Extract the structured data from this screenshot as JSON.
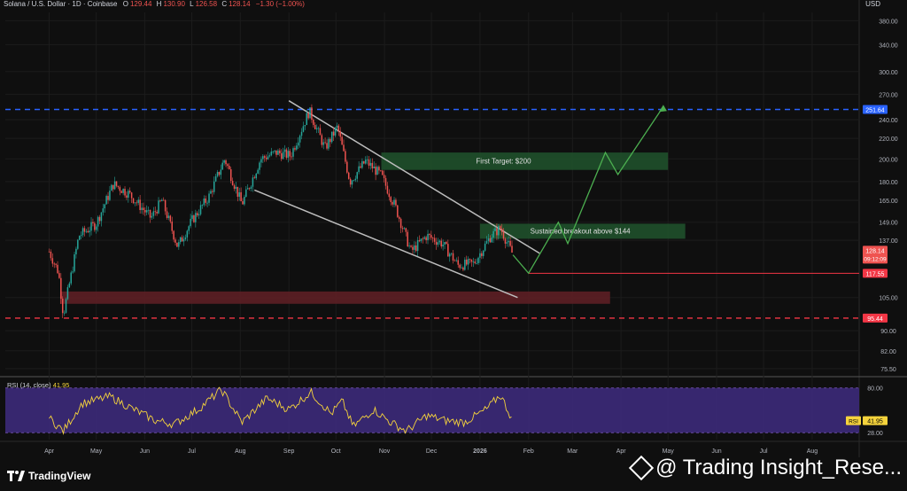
{
  "header": {
    "symbol": "Solana / U.S. Dollar · 1D · Coinbase",
    "o_label": "O",
    "o_value": "129.44",
    "h_label": "H",
    "h_value": "130.90",
    "l_label": "L",
    "l_value": "126.58",
    "c_label": "C",
    "c_value": "128.14",
    "change": "−1.30 (−1.00%)",
    "currency": "USD"
  },
  "colors": {
    "up": "#26a69a",
    "down": "#ef5350",
    "background": "#0f0f0f",
    "grid": "#1c1c1c",
    "rsi_band": "#3c2a7a",
    "rsi_line": "#f5d33c",
    "target_green": "#1f4d2a",
    "support_red": "#5a1f24",
    "blue_dash": "#2962ff",
    "red_dash": "#f23645",
    "arrow": "#4caf50",
    "channel": "#bdbdbd"
  },
  "chart_data": {
    "type": "candlestick",
    "x_ticks": [
      "Apr",
      "May",
      "Jun",
      "Jul",
      "Aug",
      "Sep",
      "Oct",
      "Nov",
      "Dec",
      "2026",
      "Feb",
      "Mar",
      "Apr",
      "May",
      "Jun",
      "Jul",
      "Aug"
    ],
    "y_scale": "log",
    "y_ticks": [
      75.5,
      82.0,
      90.0,
      105.0,
      117.55,
      128.14,
      137.0,
      149.0,
      165.0,
      180.0,
      200.0,
      220.0,
      240.0,
      270.0,
      300.0,
      340.0,
      380.0
    ],
    "y_tick_labels": [
      "75.50",
      "82.00",
      "90.00",
      "105.00",
      "117.55",
      "128.14",
      "137.00",
      "149.00",
      "165.00",
      "180.00",
      "200.00",
      "220.00",
      "240.00",
      "270.00",
      "300.00",
      "340.00",
      "380.00"
    ],
    "price_path": [
      [
        "2025-04-01",
        130
      ],
      [
        "2025-04-07",
        118
      ],
      [
        "2025-04-10",
        97
      ],
      [
        "2025-04-20",
        140
      ],
      [
        "2025-05-01",
        148
      ],
      [
        "2025-05-12",
        178
      ],
      [
        "2025-05-22",
        170
      ],
      [
        "2025-06-05",
        152
      ],
      [
        "2025-06-12",
        165
      ],
      [
        "2025-06-22",
        133
      ],
      [
        "2025-07-01",
        150
      ],
      [
        "2025-07-12",
        168
      ],
      [
        "2025-07-22",
        200
      ],
      [
        "2025-08-02",
        162
      ],
      [
        "2025-08-14",
        200
      ],
      [
        "2025-08-24",
        206
      ],
      [
        "2025-09-02",
        203
      ],
      [
        "2025-09-14",
        250
      ],
      [
        "2025-09-24",
        210
      ],
      [
        "2025-10-02",
        232
      ],
      [
        "2025-10-10",
        180
      ],
      [
        "2025-10-20",
        198
      ],
      [
        "2025-10-30",
        185
      ],
      [
        "2025-11-08",
        160
      ],
      [
        "2025-11-18",
        130
      ],
      [
        "2025-11-28",
        140
      ],
      [
        "2025-12-08",
        135
      ],
      [
        "2025-12-18",
        122
      ],
      [
        "2025-12-28",
        123
      ],
      [
        "2026-01-08",
        140
      ],
      [
        "2026-01-14",
        145
      ],
      [
        "2026-01-22",
        128.14
      ]
    ],
    "last_price": 128.14,
    "rsi": {
      "label": "RSI (14, close)",
      "value": "41.95",
      "axis_labels": [
        "80.00",
        "28.00"
      ],
      "band": [
        28,
        80
      ],
      "ylim": [
        20,
        90
      ],
      "path": [
        [
          "2025-04-01",
          45
        ],
        [
          "2025-04-10",
          30
        ],
        [
          "2025-04-22",
          62
        ],
        [
          "2025-05-10",
          70
        ],
        [
          "2025-05-25",
          55
        ],
        [
          "2025-06-08",
          42
        ],
        [
          "2025-06-20",
          38
        ],
        [
          "2025-07-05",
          55
        ],
        [
          "2025-07-20",
          78
        ],
        [
          "2025-08-02",
          40
        ],
        [
          "2025-08-18",
          68
        ],
        [
          "2025-09-01",
          55
        ],
        [
          "2025-09-15",
          75
        ],
        [
          "2025-09-28",
          50
        ],
        [
          "2025-10-05",
          65
        ],
        [
          "2025-10-12",
          35
        ],
        [
          "2025-10-25",
          55
        ],
        [
          "2025-11-05",
          40
        ],
        [
          "2025-11-15",
          30
        ],
        [
          "2025-11-28",
          48
        ],
        [
          "2025-12-10",
          42
        ],
        [
          "2025-12-22",
          40
        ],
        [
          "2026-01-05",
          55
        ],
        [
          "2026-01-14",
          72
        ],
        [
          "2026-01-22",
          41.95
        ]
      ]
    },
    "annotations": {
      "first_target_label": "First Target: $200",
      "breakout_label": "Sustained breakout above $144",
      "levels": [
        {
          "value": 251.64,
          "label": "251.64",
          "color": "#2962ff"
        },
        {
          "value": 117.55,
          "label": "117.55",
          "color": "#f23645"
        },
        {
          "value": 95.44,
          "label": "95.44",
          "color": "#f23645"
        }
      ],
      "price_tag": {
        "value": "128.14",
        "sub": "09:12:09"
      },
      "first_target_zone": [
        190,
        206,
        "2025-10-30",
        "2026-05-01"
      ],
      "breakout_zone": [
        138,
        148,
        "2026-01-01",
        "2026-05-12"
      ],
      "support_zone": [
        102,
        108,
        "2025-04-08",
        "2026-03-25"
      ],
      "channel_upper": [
        [
          "2025-09-01",
          262
        ],
        [
          "2026-02-08",
          129
        ]
      ],
      "channel_lower": [
        [
          "2025-08-10",
          173
        ],
        [
          "2026-01-25",
          105
        ]
      ],
      "projection": [
        [
          "2026-01-22",
          128
        ],
        [
          "2026-02-01",
          117.55
        ],
        [
          "2026-02-20",
          149
        ],
        [
          "2026-02-26",
          135
        ],
        [
          "2026-03-22",
          206
        ],
        [
          "2026-03-30",
          186
        ],
        [
          "2026-04-28",
          255
        ]
      ]
    }
  },
  "footer": {
    "brand": "TradingView",
    "watermark": "@ Trading Insight_Rese..."
  }
}
